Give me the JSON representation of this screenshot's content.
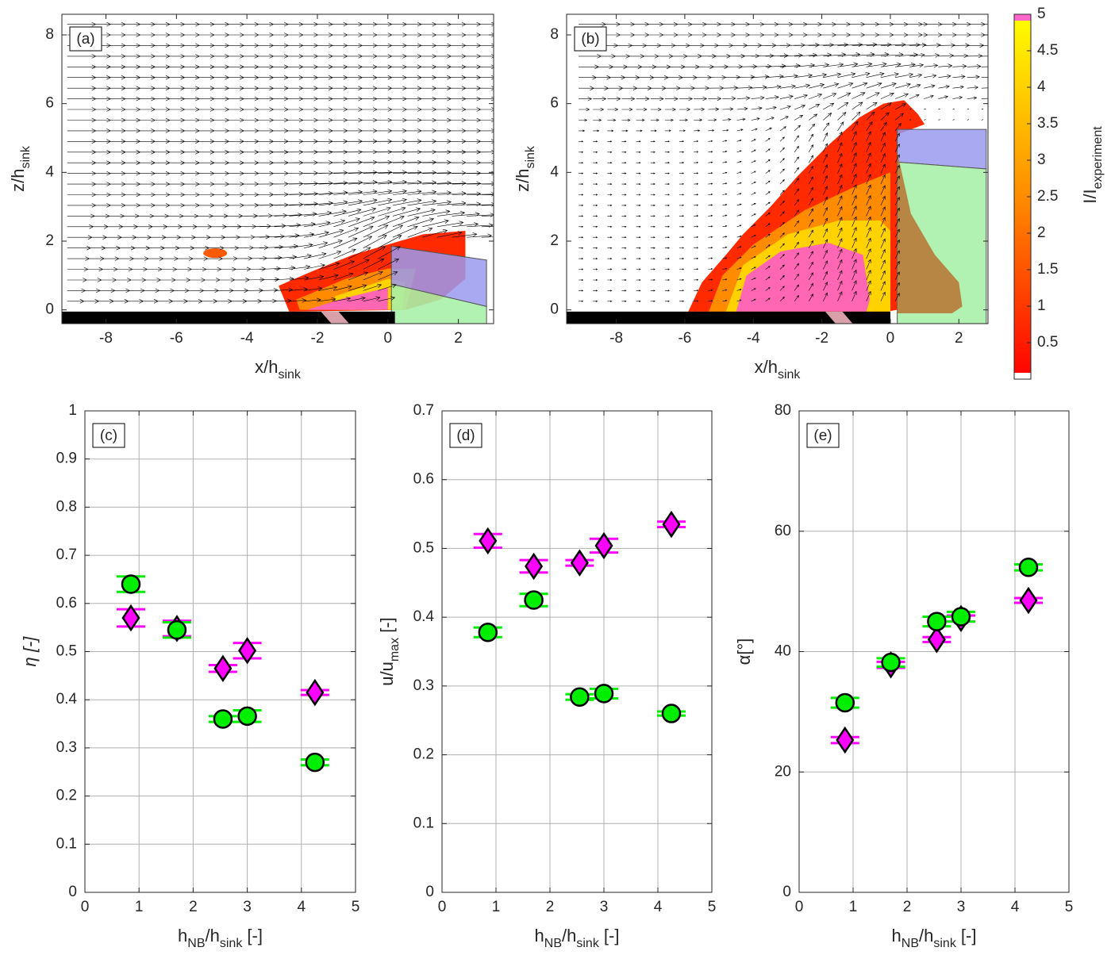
{
  "chart_data": [
    {
      "type": "field",
      "panel": "(a)",
      "xlabel": [
        {
          "text": "x/h"
        },
        {
          "sub": "sink"
        }
      ],
      "ylabel": [
        {
          "text": "z/h"
        },
        {
          "sub": "sink"
        }
      ],
      "xlim": [
        -9.25,
        3
      ],
      "ylim": [
        -0.4,
        8.6
      ],
      "xticks": [
        -8,
        -6,
        -4,
        -2,
        0,
        2
      ],
      "yticks": [
        0,
        2,
        4,
        6,
        8
      ]
    },
    {
      "type": "field",
      "panel": "(b)",
      "xlabel": [
        {
          "text": "x/h"
        },
        {
          "sub": "sink"
        }
      ],
      "ylabel": [
        {
          "text": "z/h"
        },
        {
          "sub": "sink"
        }
      ],
      "xlim": [
        -9.45,
        2.85
      ],
      "ylim": [
        -0.4,
        8.6
      ],
      "xticks": [
        -8,
        -6,
        -4,
        -2,
        0,
        2
      ],
      "yticks": [
        0,
        2,
        4,
        6,
        8
      ]
    },
    {
      "type": "colorbar",
      "label": [
        {
          "text": "I/I"
        },
        {
          "sub": "experiment"
        }
      ],
      "ylim": [
        0,
        5
      ],
      "yticks": [
        0.5,
        1,
        1.5,
        2,
        2.5,
        3,
        3.5,
        4,
        4.5,
        5
      ],
      "colors": [
        "#ff0000",
        "#ff8c00",
        "#ffff00"
      ],
      "over_color": "#ff66cc",
      "under_color": "#ffffff"
    },
    {
      "type": "scatter",
      "panel": "(c)",
      "grid": true,
      "xlabel": [
        {
          "text": "h"
        },
        {
          "sub": "NB"
        },
        {
          "text": "/h"
        },
        {
          "sub": "sink"
        },
        {
          "text": " [-]"
        }
      ],
      "ylabel": [
        {
          "text": "η [-]"
        }
      ],
      "xlim": [
        0,
        5
      ],
      "ylim": [
        0,
        1
      ],
      "xticks": [
        0,
        1,
        2,
        3,
        4,
        5
      ],
      "yticks": [
        0,
        0.1,
        0.2,
        0.3,
        0.4,
        0.5,
        0.6,
        0.7,
        0.8,
        0.9,
        1
      ],
      "series": [
        {
          "color": "#ff00ff",
          "marker": "diamond",
          "x": [
            0.85,
            1.7,
            2.55,
            3.0,
            4.25
          ],
          "values": [
            0.57,
            0.548,
            0.465,
            0.502,
            0.415
          ],
          "errors": [
            0.018,
            0.016,
            0.007,
            0.016,
            0.005
          ]
        },
        {
          "color": "#00ee00",
          "marker": "circle",
          "x": [
            0.85,
            1.7,
            2.55,
            3.0,
            4.25
          ],
          "values": [
            0.64,
            0.545,
            0.36,
            0.366,
            0.27
          ],
          "errors": [
            0.016,
            0.016,
            0.006,
            0.012,
            0.006
          ]
        }
      ]
    },
    {
      "type": "scatter",
      "panel": "(d)",
      "grid": true,
      "xlabel": [
        {
          "text": "h"
        },
        {
          "sub": "NB"
        },
        {
          "text": "/h"
        },
        {
          "sub": "sink"
        },
        {
          "text": " [-]"
        }
      ],
      "ylabel": [
        {
          "text": "u/u"
        },
        {
          "sub": "max"
        },
        {
          "text": " [-]"
        }
      ],
      "xlim": [
        0,
        5
      ],
      "ylim": [
        0,
        0.7
      ],
      "xticks": [
        0,
        1,
        2,
        3,
        4,
        5
      ],
      "yticks": [
        0,
        0.1,
        0.2,
        0.3,
        0.4,
        0.5,
        0.6,
        0.7
      ],
      "series": [
        {
          "color": "#ff00ff",
          "marker": "diamond",
          "x": [
            0.85,
            1.7,
            2.55,
            3.0,
            4.25
          ],
          "values": [
            0.511,
            0.474,
            0.479,
            0.504,
            0.535
          ],
          "errors": [
            0.01,
            0.009,
            0.004,
            0.01,
            0.004
          ]
        },
        {
          "color": "#00ee00",
          "marker": "circle",
          "x": [
            0.85,
            1.7,
            2.55,
            3.0,
            4.25
          ],
          "values": [
            0.378,
            0.425,
            0.284,
            0.289,
            0.26
          ],
          "errors": [
            0.007,
            0.009,
            0.004,
            0.007,
            0.003
          ]
        }
      ]
    },
    {
      "type": "scatter",
      "panel": "(e)",
      "grid": true,
      "xlabel": [
        {
          "text": "h"
        },
        {
          "sub": "NB"
        },
        {
          "text": "/h"
        },
        {
          "sub": "sink"
        },
        {
          "text": " [-]"
        }
      ],
      "ylabel": [
        {
          "text": "α[°]"
        }
      ],
      "xlim": [
        0,
        5
      ],
      "ylim": [
        0,
        80
      ],
      "xticks": [
        0,
        1,
        2,
        3,
        4,
        5
      ],
      "yticks": [
        0,
        20,
        40,
        60,
        80
      ],
      "series": [
        {
          "color": "#ff00ff",
          "marker": "diamond",
          "x": [
            0.85,
            1.7,
            2.55,
            3.0,
            4.25
          ],
          "values": [
            25.3,
            37.8,
            42,
            45.5,
            48.5
          ],
          "errors": [
            0.5,
            0.5,
            0.4,
            0.5,
            0.4
          ]
        },
        {
          "color": "#00ee00",
          "marker": "circle",
          "x": [
            0.85,
            1.7,
            2.55,
            3.0,
            4.25
          ],
          "values": [
            31.5,
            38.2,
            45,
            45.8,
            54
          ],
          "errors": [
            0.8,
            0.7,
            0.8,
            0.8,
            0.5
          ]
        }
      ]
    }
  ]
}
